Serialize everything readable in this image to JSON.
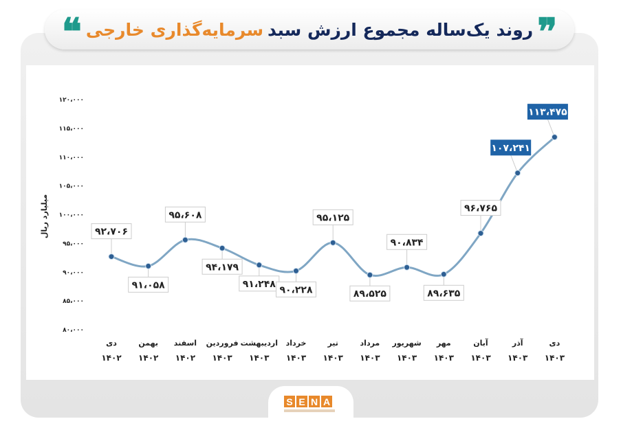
{
  "title": {
    "part1": "روند یک‌ساله مجموع ارزش سبد",
    "part2": "سرمایه‌گذاری خارجی",
    "quote_open": "❞",
    "quote_close": "❝"
  },
  "logo": {
    "text": [
      "S",
      "E",
      "N",
      "A"
    ]
  },
  "colors": {
    "line": "#7fa6c4",
    "point": "#2e5f93",
    "highlight": "#1f63a7",
    "title_dark": "#14285a",
    "title_accent": "#e8892b",
    "quote": "#1f9a8c"
  },
  "chart_data": {
    "type": "line",
    "title": "روند یک‌ساله مجموع ارزش سبد سرمایه‌گذاری خارجی",
    "ylabel": "میلیارد ریال",
    "xlabel": "",
    "ylim": [
      80000,
      120000
    ],
    "yticks": [
      80000,
      85000,
      90000,
      95000,
      100000,
      105000,
      110000,
      115000,
      120000
    ],
    "ytick_labels": [
      "۸۰،۰۰۰",
      "۸۵،۰۰۰",
      "۹۰،۰۰۰",
      "۹۵،۰۰۰",
      "۱۰۰،۰۰۰",
      "۱۰۵،۰۰۰",
      "۱۱۰،۰۰۰",
      "۱۱۵،۰۰۰",
      "۱۲۰،۰۰۰"
    ],
    "categories": [
      {
        "month": "دی",
        "year": "۱۴۰۲"
      },
      {
        "month": "بهمن",
        "year": "۱۴۰۲"
      },
      {
        "month": "اسفند",
        "year": "۱۴۰۲"
      },
      {
        "month": "فروردین",
        "year": "۱۴۰۳"
      },
      {
        "month": "اردیبهشت",
        "year": "۱۴۰۳"
      },
      {
        "month": "خرداد",
        "year": "۱۴۰۳"
      },
      {
        "month": "تیر",
        "year": "۱۴۰۳"
      },
      {
        "month": "مرداد",
        "year": "۱۴۰۳"
      },
      {
        "month": "شهریور",
        "year": "۱۴۰۳"
      },
      {
        "month": "مهر",
        "year": "۱۴۰۳"
      },
      {
        "month": "آبان",
        "year": "۱۴۰۳"
      },
      {
        "month": "آذر",
        "year": "۱۴۰۳"
      },
      {
        "month": "دی",
        "year": "۱۴۰۳"
      }
    ],
    "values": [
      92706,
      91058,
      95608,
      94179,
      91248,
      90228,
      95125,
      89525,
      90834,
      89635,
      96765,
      107241,
      113475
    ],
    "data_labels": [
      "۹۲،۷۰۶",
      "۹۱،۰۵۸",
      "۹۵،۶۰۸",
      "۹۴،۱۷۹",
      "۹۱،۲۴۸",
      "۹۰،۲۲۸",
      "۹۵،۱۲۵",
      "۸۹،۵۲۵",
      "۹۰،۸۳۴",
      "۸۹،۶۳۵",
      "۹۶،۷۶۵",
      "۱۰۷،۲۴۱",
      "۱۱۳،۴۷۵"
    ],
    "label_positions": [
      "above",
      "below",
      "above",
      "below",
      "below",
      "below",
      "above",
      "below",
      "above",
      "below",
      "above",
      "above",
      "above"
    ],
    "highlighted": [
      11,
      12
    ],
    "grid": false,
    "legend": "none"
  }
}
